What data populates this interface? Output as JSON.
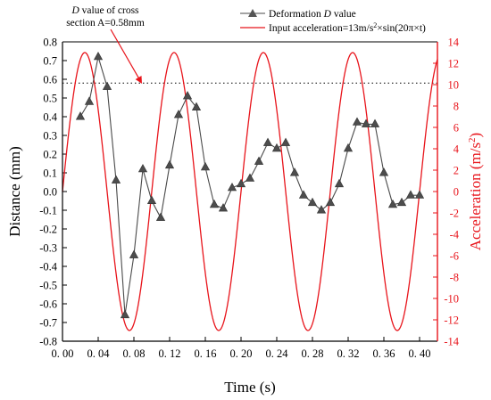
{
  "chart_data": {
    "type": "line",
    "x_axis": {
      "label": "Time (s)",
      "range": [
        0.0,
        0.42
      ],
      "ticks": [
        0.0,
        0.04,
        0.08,
        0.12,
        0.16,
        0.2,
        0.24,
        0.28,
        0.32,
        0.36,
        0.4
      ],
      "tick_labels": [
        "0. 00",
        "0. 04",
        "0. 08",
        "0. 12",
        "0. 16",
        "0. 20",
        "0. 24",
        "0. 28",
        "0. 32",
        "0. 36",
        "0. 40"
      ]
    },
    "y_axis_left": {
      "label": "Distance (mm)",
      "range": [
        -0.8,
        0.8
      ],
      "ticks": [
        -0.8,
        -0.7,
        -0.6,
        -0.5,
        -0.4,
        -0.3,
        -0.2,
        -0.1,
        0.0,
        0.1,
        0.2,
        0.3,
        0.4,
        0.5,
        0.6,
        0.7,
        0.8
      ],
      "tick_labels": [
        "-0.8",
        "-0.7",
        "-0.6",
        "-0.5",
        "-0.4",
        "-0.3",
        "-0.2",
        "-0.1",
        "0.0",
        "0.1",
        "0.2",
        "0.3",
        "0.4",
        "0.5",
        "0.6",
        "0.7",
        "0.8"
      ]
    },
    "y_axis_right": {
      "label_main": "Acceleration (m/s",
      "label_sup": "2",
      "label_end": ")",
      "color": "#e8141b",
      "range": [
        -14,
        14
      ],
      "ticks": [
        -14,
        -12,
        -10,
        -8,
        -6,
        -4,
        -2,
        0,
        2,
        4,
        6,
        8,
        10,
        12,
        14
      ],
      "tick_labels": [
        "-14",
        "-12",
        "-10",
        "-8",
        "-6",
        "-4",
        "-2",
        "0",
        "2",
        "4",
        "6",
        "8",
        "10",
        "12",
        "14"
      ]
    },
    "series": [
      {
        "name_prefix": "Deformation ",
        "name_italic": "D",
        "name_suffix": " value",
        "color": "#3a3a3a",
        "marker": "triangle",
        "axis": "left",
        "x": [
          0.02,
          0.03,
          0.04,
          0.05,
          0.06,
          0.07,
          0.08,
          0.09,
          0.1,
          0.11,
          0.12,
          0.13,
          0.14,
          0.15,
          0.16,
          0.17,
          0.18,
          0.19,
          0.2,
          0.21,
          0.22,
          0.23,
          0.24,
          0.25,
          0.26,
          0.27,
          0.28,
          0.29,
          0.3,
          0.31,
          0.32,
          0.33,
          0.34,
          0.35,
          0.36,
          0.37,
          0.38,
          0.39,
          0.4
        ],
        "y": [
          0.4,
          0.48,
          0.72,
          0.56,
          0.06,
          -0.66,
          -0.34,
          0.12,
          -0.05,
          -0.14,
          0.14,
          0.41,
          0.51,
          0.45,
          0.13,
          -0.07,
          -0.09,
          0.02,
          0.04,
          0.07,
          0.16,
          0.26,
          0.23,
          0.26,
          0.1,
          -0.02,
          -0.06,
          -0.1,
          -0.06,
          0.04,
          0.23,
          0.37,
          0.36,
          0.36,
          0.1,
          -0.07,
          -0.06,
          -0.02,
          -0.02
        ]
      },
      {
        "name_prefix": "Input acceleration=13m/s",
        "name_sup": "2",
        "name_suffix": "×sin(20π×t)",
        "color": "#e8141b",
        "axis": "right",
        "function": "13*sin(20*pi*t)",
        "amplitude": 13,
        "frequency_hz": 10,
        "x_range": [
          0.0,
          0.42
        ]
      }
    ],
    "reference_line": {
      "axis": "left",
      "y": 0.58,
      "style": "dotted"
    },
    "annotation": {
      "line1_italic": "D",
      "line1_rest": " value of cross",
      "line2": "section A=0.58mm",
      "arrow_to": {
        "x": 0.09,
        "y": 0.58
      }
    },
    "legend_position": "top-center",
    "grid": false
  }
}
